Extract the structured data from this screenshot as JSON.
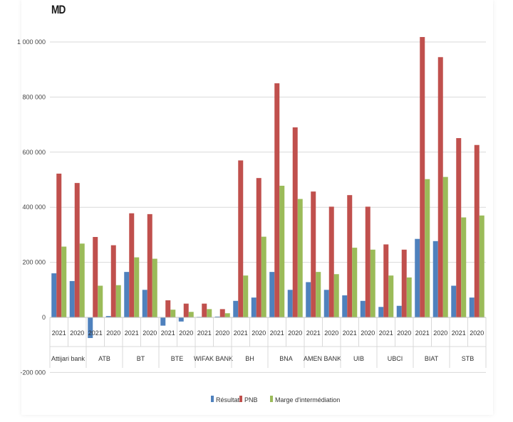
{
  "unit_label": "MD",
  "chart_data": {
    "type": "bar",
    "title": "",
    "xlabel": "",
    "ylabel": "MD",
    "ylim": [
      -200000,
      1000000
    ],
    "yticks": [
      -200000,
      0,
      200000,
      400000,
      600000,
      800000,
      1000000
    ],
    "ytick_labels": [
      "-200 000",
      "0",
      "200 000",
      "400 000",
      "600 000",
      "800 000",
      "1 000 000"
    ],
    "grid": true,
    "legend_position": "bottom",
    "groups": [
      {
        "name": "Attijari bank",
        "years": [
          "2021",
          "2020"
        ]
      },
      {
        "name": "ATB",
        "years": [
          "2021",
          "2020"
        ]
      },
      {
        "name": "BT",
        "years": [
          "2021",
          "2020"
        ]
      },
      {
        "name": "BTE",
        "years": [
          "2021",
          "2020"
        ]
      },
      {
        "name": "WIFAK BANK",
        "years": [
          "2021",
          "2020"
        ]
      },
      {
        "name": "BH",
        "years": [
          "2021",
          "2020"
        ]
      },
      {
        "name": "BNA",
        "years": [
          "2021",
          "2020"
        ]
      },
      {
        "name": "AMEN BANK",
        "years": [
          "2021",
          "2020"
        ]
      },
      {
        "name": "UIB",
        "years": [
          "2021",
          "2020"
        ]
      },
      {
        "name": "UBCI",
        "years": [
          "2021",
          "2020"
        ]
      },
      {
        "name": "BIAT",
        "years": [
          "2021",
          "2020"
        ]
      },
      {
        "name": "STB",
        "years": [
          "2021",
          "2020"
        ]
      }
    ],
    "series": [
      {
        "name": "Résultat",
        "color": "#4f81bd",
        "values": [
          160000,
          132000,
          -75000,
          5000,
          165000,
          100000,
          -30000,
          -15000,
          2000,
          3000,
          60000,
          72000,
          165000,
          100000,
          128000,
          100000,
          80000,
          60000,
          38000,
          42000,
          285000,
          277000,
          115000,
          72000
        ]
      },
      {
        "name": "PNB",
        "color": "#c0504d",
        "values": [
          522000,
          488000,
          292000,
          262000,
          378000,
          375000,
          62000,
          50000,
          50000,
          30000,
          570000,
          506000,
          850000,
          690000,
          457000,
          402000,
          444000,
          402000,
          265000,
          246000,
          1018000,
          945000,
          651000,
          626000
        ]
      },
      {
        "name": "Marge d'intermédiation",
        "color": "#9bbb59",
        "values": [
          257000,
          268000,
          115000,
          117000,
          218000,
          213000,
          28000,
          20000,
          30000,
          15000,
          152000,
          293000,
          478000,
          430000,
          165000,
          157000,
          253000,
          246000,
          152000,
          145000,
          502000,
          510000,
          363000,
          370000
        ]
      }
    ]
  }
}
